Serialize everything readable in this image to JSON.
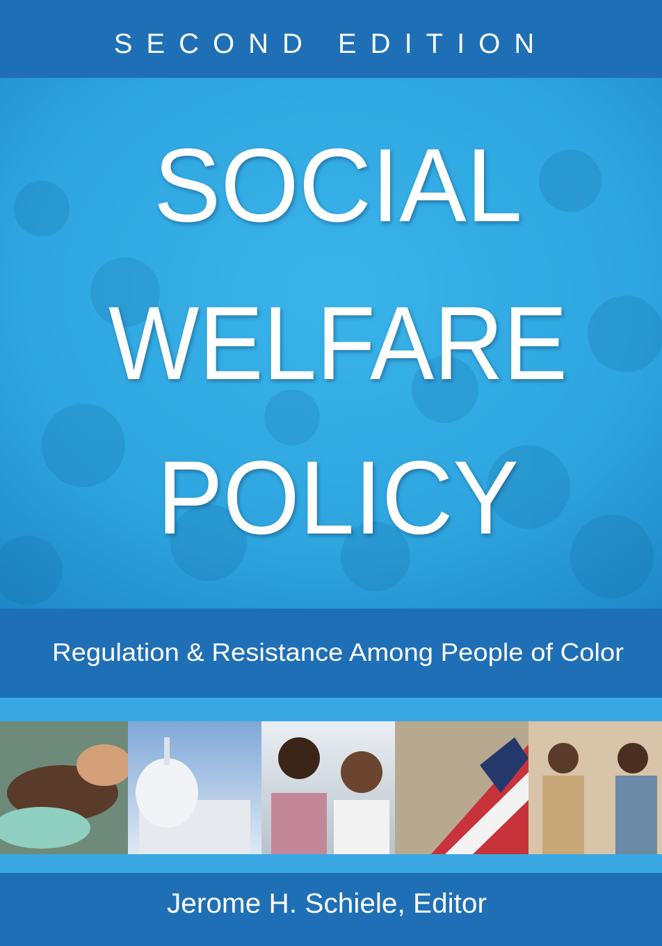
{
  "cover": {
    "edition": "SECOND EDITION",
    "title": [
      "SOCIAL",
      "WELFARE",
      "POLICY"
    ],
    "subtitle": "Regulation & Resistance Among People of Color",
    "editor": "Jerome H. Schiele, Editor"
  }
}
